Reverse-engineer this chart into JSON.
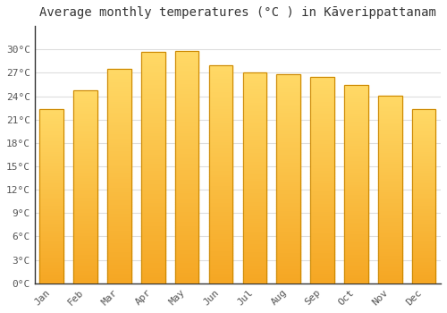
{
  "title": "Average monthly temperatures (°C ) in Kāverippattanam",
  "months": [
    "Jan",
    "Feb",
    "Mar",
    "Apr",
    "May",
    "Jun",
    "Jul",
    "Aug",
    "Sep",
    "Oct",
    "Nov",
    "Dec"
  ],
  "values": [
    22.3,
    24.7,
    27.5,
    29.7,
    29.8,
    28.0,
    27.1,
    26.8,
    26.5,
    25.4,
    24.1,
    22.3
  ],
  "bar_color_bottom": "#F5A623",
  "bar_color_top": "#FFD966",
  "bar_edge_color": "#CC8800",
  "background_color": "#FFFFFF",
  "grid_color": "#DDDDDD",
  "ylim": [
    0,
    33
  ],
  "yticks": [
    0,
    3,
    6,
    9,
    12,
    15,
    18,
    21,
    24,
    27,
    30
  ],
  "ytick_labels": [
    "0°C",
    "3°C",
    "6°C",
    "9°C",
    "12°C",
    "15°C",
    "18°C",
    "21°C",
    "24°C",
    "27°C",
    "30°C"
  ],
  "title_fontsize": 10,
  "tick_fontsize": 8,
  "tick_color": "#555555",
  "spine_color": "#333333"
}
